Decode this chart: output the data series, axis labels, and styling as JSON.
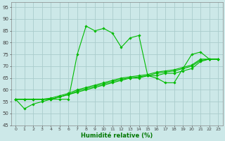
{
  "title": "",
  "xlabel": "Humidité relative (%)",
  "ylabel": "",
  "bg_color": "#cce8e8",
  "grid_color": "#aacccc",
  "line_color": "#00bb00",
  "xlim": [
    -0.5,
    23.5
  ],
  "ylim": [
    45,
    97
  ],
  "yticks": [
    45,
    50,
    55,
    60,
    65,
    70,
    75,
    80,
    85,
    90,
    95
  ],
  "xticks": [
    0,
    1,
    2,
    3,
    4,
    5,
    6,
    7,
    8,
    9,
    10,
    11,
    12,
    13,
    14,
    15,
    16,
    17,
    18,
    19,
    20,
    21,
    22,
    23
  ],
  "series": [
    {
      "x": [
        0,
        1,
        2,
        3,
        4,
        5,
        6,
        7,
        8,
        9,
        10,
        11,
        12,
        13,
        14,
        15,
        16,
        17,
        18,
        19,
        20,
        21,
        22,
        23
      ],
      "y": [
        56,
        52,
        54,
        55,
        56,
        56,
        56,
        75,
        87,
        85,
        86,
        84,
        78,
        82,
        83,
        66,
        65,
        63,
        63,
        69,
        75,
        76,
        73,
        73
      ]
    },
    {
      "x": [
        0,
        1,
        2,
        3,
        4,
        5,
        6,
        7,
        8,
        9,
        10,
        11,
        12,
        13,
        14,
        15,
        16,
        17,
        18,
        19,
        20,
        21,
        22,
        23
      ],
      "y": [
        56,
        56,
        56,
        56,
        56,
        57,
        58,
        59,
        60,
        61,
        62,
        63,
        64,
        65,
        65,
        66,
        66,
        67,
        67,
        68,
        69,
        72,
        73,
        73
      ]
    },
    {
      "x": [
        0,
        1,
        2,
        3,
        4,
        5,
        6,
        7,
        8,
        9,
        10,
        11,
        12,
        13,
        14,
        15,
        16,
        17,
        18,
        19,
        20,
        21,
        22,
        23
      ],
      "y": [
        56,
        56,
        56,
        56,
        56,
        57,
        58,
        59.5,
        60.5,
        61.5,
        62.5,
        63.5,
        64.5,
        65,
        65.5,
        66,
        67,
        67.5,
        68,
        69,
        70,
        72.5,
        73,
        73
      ]
    },
    {
      "x": [
        0,
        1,
        2,
        3,
        4,
        5,
        6,
        7,
        8,
        9,
        10,
        11,
        12,
        13,
        14,
        15,
        16,
        17,
        18,
        19,
        20,
        21,
        22,
        23
      ],
      "y": [
        56,
        56,
        56,
        56,
        56.5,
        57.5,
        58.5,
        60,
        61,
        62,
        63,
        64,
        65,
        65.5,
        66,
        66.5,
        67.5,
        68,
        68.5,
        69.5,
        70.5,
        73,
        73,
        73
      ]
    }
  ]
}
